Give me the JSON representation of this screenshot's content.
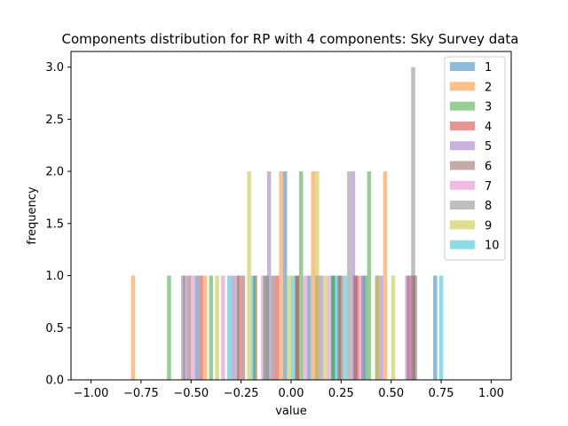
{
  "chart_data": {
    "type": "bar",
    "title": "Components distribution for RP with 4 components: Sky Survey data",
    "xlabel": "value",
    "ylabel": "frequency",
    "xlim": [
      -1.1,
      1.1
    ],
    "ylim": [
      0,
      3.15
    ],
    "xticks": [
      -1.0,
      -0.75,
      -0.5,
      -0.25,
      0.0,
      0.25,
      0.5,
      0.75,
      1.0
    ],
    "xtick_labels": [
      "−1.00",
      "−0.75",
      "−0.50",
      "−0.25",
      "0.00",
      "0.25",
      "0.50",
      "0.75",
      "1.00"
    ],
    "yticks": [
      0.0,
      0.5,
      1.0,
      1.5,
      2.0,
      2.5,
      3.0
    ],
    "ytick_labels": [
      "0.0",
      "0.5",
      "1.0",
      "1.5",
      "2.0",
      "2.5",
      "3.0"
    ],
    "bin_width": 0.02,
    "bar_alpha": 0.5,
    "grid": false,
    "legend_position": "top-right",
    "series": [
      {
        "name": "1",
        "color": "#1f77b4",
        "bars": [
          {
            "x": -0.48,
            "y": 1
          },
          {
            "x": -0.19,
            "y": 1
          },
          {
            "x": -0.04,
            "y": 2
          },
          {
            "x": 0.08,
            "y": 1
          },
          {
            "x": 0.2,
            "y": 1
          },
          {
            "x": 0.35,
            "y": 1
          },
          {
            "x": 0.71,
            "y": 1
          }
        ]
      },
      {
        "name": "2",
        "color": "#ff7f0e",
        "bars": [
          {
            "x": -0.8,
            "y": 1
          },
          {
            "x": -0.44,
            "y": 1
          },
          {
            "x": -0.19,
            "y": 1
          },
          {
            "x": -0.06,
            "y": 2
          },
          {
            "x": 0.1,
            "y": 2
          },
          {
            "x": 0.36,
            "y": 1
          },
          {
            "x": 0.46,
            "y": 2
          }
        ]
      },
      {
        "name": "3",
        "color": "#2ca02c",
        "bars": [
          {
            "x": -0.62,
            "y": 1
          },
          {
            "x": -0.41,
            "y": 1
          },
          {
            "x": -0.13,
            "y": 1
          },
          {
            "x": 0.04,
            "y": 2
          },
          {
            "x": 0.2,
            "y": 1
          },
          {
            "x": 0.38,
            "y": 2
          },
          {
            "x": 0.6,
            "y": 1
          }
        ]
      },
      {
        "name": "4",
        "color": "#d62728",
        "bars": [
          {
            "x": -0.46,
            "y": 1
          },
          {
            "x": -0.27,
            "y": 1
          },
          {
            "x": -0.08,
            "y": 1
          },
          {
            "x": 0.02,
            "y": 1
          },
          {
            "x": 0.23,
            "y": 1
          },
          {
            "x": 0.32,
            "y": 1
          },
          {
            "x": 0.58,
            "y": 1
          }
        ]
      },
      {
        "name": "5",
        "color": "#9467bd",
        "bars": [
          {
            "x": -0.54,
            "y": 1
          },
          {
            "x": -0.3,
            "y": 1
          },
          {
            "x": -0.12,
            "y": 2
          },
          {
            "x": 0.14,
            "y": 1
          },
          {
            "x": 0.3,
            "y": 2
          },
          {
            "x": 0.44,
            "y": 1
          },
          {
            "x": 0.57,
            "y": 1
          }
        ]
      },
      {
        "name": "6",
        "color": "#8c564b",
        "bars": [
          {
            "x": -0.52,
            "y": 1
          },
          {
            "x": -0.25,
            "y": 1
          },
          {
            "x": -0.1,
            "y": 1
          },
          {
            "x": 0.02,
            "y": 1
          },
          {
            "x": 0.24,
            "y": 1
          },
          {
            "x": 0.31,
            "y": 1
          },
          {
            "x": 0.61,
            "y": 1
          }
        ]
      },
      {
        "name": "7",
        "color": "#e377c2",
        "bars": [
          {
            "x": -0.5,
            "y": 1
          },
          {
            "x": -0.35,
            "y": 1
          },
          {
            "x": -0.15,
            "y": 1
          },
          {
            "x": 0.06,
            "y": 1
          },
          {
            "x": 0.18,
            "y": 1
          },
          {
            "x": 0.34,
            "y": 1
          },
          {
            "x": 0.59,
            "y": 1
          }
        ]
      },
      {
        "name": "8",
        "color": "#7f7f7f",
        "bars": [
          {
            "x": -0.55,
            "y": 1
          },
          {
            "x": -0.28,
            "y": 1
          },
          {
            "x": -0.14,
            "y": 1
          },
          {
            "x": 0.12,
            "y": 1
          },
          {
            "x": 0.28,
            "y": 2
          },
          {
            "x": 0.42,
            "y": 1
          },
          {
            "x": 0.6,
            "y": 3
          }
        ]
      },
      {
        "name": "9",
        "color": "#bcbd22",
        "bars": [
          {
            "x": -0.38,
            "y": 1
          },
          {
            "x": -0.22,
            "y": 2
          },
          {
            "x": -0.02,
            "y": 1
          },
          {
            "x": 0.12,
            "y": 2
          },
          {
            "x": 0.16,
            "y": 1
          },
          {
            "x": 0.42,
            "y": 1
          },
          {
            "x": 0.5,
            "y": 1
          }
        ]
      },
      {
        "name": "10",
        "color": "#17becf",
        "bars": [
          {
            "x": -0.32,
            "y": 1
          },
          {
            "x": -0.2,
            "y": 1
          },
          {
            "x": 0.0,
            "y": 1
          },
          {
            "x": 0.22,
            "y": 1
          },
          {
            "x": 0.26,
            "y": 1
          },
          {
            "x": 0.36,
            "y": 1
          },
          {
            "x": 0.74,
            "y": 1
          }
        ]
      }
    ]
  }
}
